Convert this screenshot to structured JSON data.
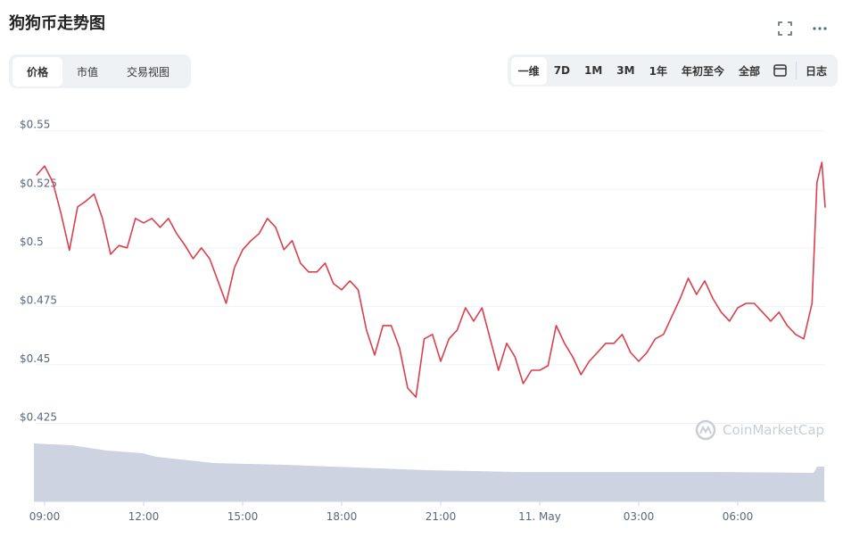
{
  "header": {
    "title": "狗狗币走势图"
  },
  "tabs": [
    "价格",
    "市值",
    "交易视图"
  ],
  "ranges": [
    "一维",
    "7D",
    "1M",
    "3M",
    "1年",
    "年初至今",
    "全部",
    "日志"
  ],
  "chart_data": {
    "type": "line",
    "watermark": "CoinMarketCap",
    "xlim": [
      8.75,
      32.75
    ],
    "xticks": [
      {
        "value": 9,
        "label": "09:00"
      },
      {
        "value": 12,
        "label": "12:00"
      },
      {
        "value": 15,
        "label": "15:00"
      },
      {
        "value": 18,
        "label": "18:00"
      },
      {
        "value": 21,
        "label": "21:00"
      },
      {
        "value": 24,
        "label": "11. May"
      },
      {
        "value": 27,
        "label": "03:00"
      },
      {
        "value": 30,
        "label": "06:00"
      }
    ],
    "ylim": [
      0.392,
      0.556
    ],
    "yticks": [
      {
        "value": 0.425,
        "label": "$0.425"
      },
      {
        "value": 0.45,
        "label": "$0.45"
      },
      {
        "value": 0.475,
        "label": "$0.475"
      },
      {
        "value": 0.5,
        "label": "$0.5"
      },
      {
        "value": 0.525,
        "label": "$0.525"
      },
      {
        "value": 0.55,
        "label": "$0.55"
      }
    ],
    "grid": true,
    "x": [
      8.75,
      9.0,
      9.25,
      9.5,
      9.75,
      10.0,
      10.25,
      10.5,
      10.75,
      11.0,
      11.25,
      11.5,
      11.75,
      12.0,
      12.25,
      12.5,
      12.75,
      13.0,
      13.25,
      13.5,
      13.75,
      14.0,
      14.25,
      14.5,
      14.75,
      15.0,
      15.25,
      15.5,
      15.75,
      16.0,
      16.25,
      16.5,
      16.75,
      17.0,
      17.25,
      17.5,
      17.75,
      18.0,
      18.25,
      18.5,
      18.75,
      19.0,
      19.25,
      19.5,
      19.75,
      20.0,
      20.25,
      20.5,
      20.75,
      21.0,
      21.25,
      21.5,
      21.75,
      22.0,
      22.25,
      22.5,
      22.75,
      23.0,
      23.25,
      23.5,
      23.75,
      24.0,
      24.25,
      24.5,
      24.75,
      25.0,
      25.25,
      25.5,
      25.75,
      26.0,
      26.25,
      26.5,
      26.75,
      27.0,
      27.25,
      27.5,
      27.75,
      28.0,
      28.25,
      28.5,
      28.75,
      29.0,
      29.25,
      29.5,
      29.75,
      30.0,
      30.25,
      30.5,
      30.75,
      31.0,
      31.25,
      31.5,
      31.75,
      32.0,
      32.25,
      32.4,
      32.55,
      32.65
    ],
    "series": [
      {
        "name": "价格",
        "color": "#d8404c",
        "values": [
          0.531,
          0.535,
          0.528,
          0.5145,
          0.499,
          0.5175,
          0.52,
          0.523,
          0.5126,
          0.4973,
          0.501,
          0.5,
          0.5126,
          0.5107,
          0.5126,
          0.5088,
          0.5126,
          0.5061,
          0.5011,
          0.4954,
          0.5,
          0.4954,
          0.4859,
          0.4763,
          0.4916,
          0.4992,
          0.5031,
          0.5061,
          0.5126,
          0.5088,
          0.4992,
          0.5031,
          0.4935,
          0.4897,
          0.4897,
          0.4935,
          0.4847,
          0.4821,
          0.4859,
          0.4821,
          0.4649,
          0.4542,
          0.4668,
          0.4668,
          0.4573,
          0.4401,
          0.4362,
          0.4611,
          0.463,
          0.4515,
          0.4611,
          0.4649,
          0.4744,
          0.4687,
          0.4744,
          0.4611,
          0.4477,
          0.4592,
          0.4534,
          0.442,
          0.4477,
          0.4477,
          0.4496,
          0.4668,
          0.4592,
          0.4534,
          0.4458,
          0.4515,
          0.4553,
          0.4592,
          0.4592,
          0.463,
          0.4553,
          0.4515,
          0.4553,
          0.4611,
          0.463,
          0.4706,
          0.4782,
          0.487,
          0.4801,
          0.4859,
          0.4782,
          0.4725,
          0.4687,
          0.4744,
          0.4763,
          0.4763,
          0.4725,
          0.4687,
          0.4725,
          0.4668,
          0.463,
          0.4611,
          0.4763,
          0.528,
          0.5366,
          0.5172
        ]
      }
    ]
  }
}
